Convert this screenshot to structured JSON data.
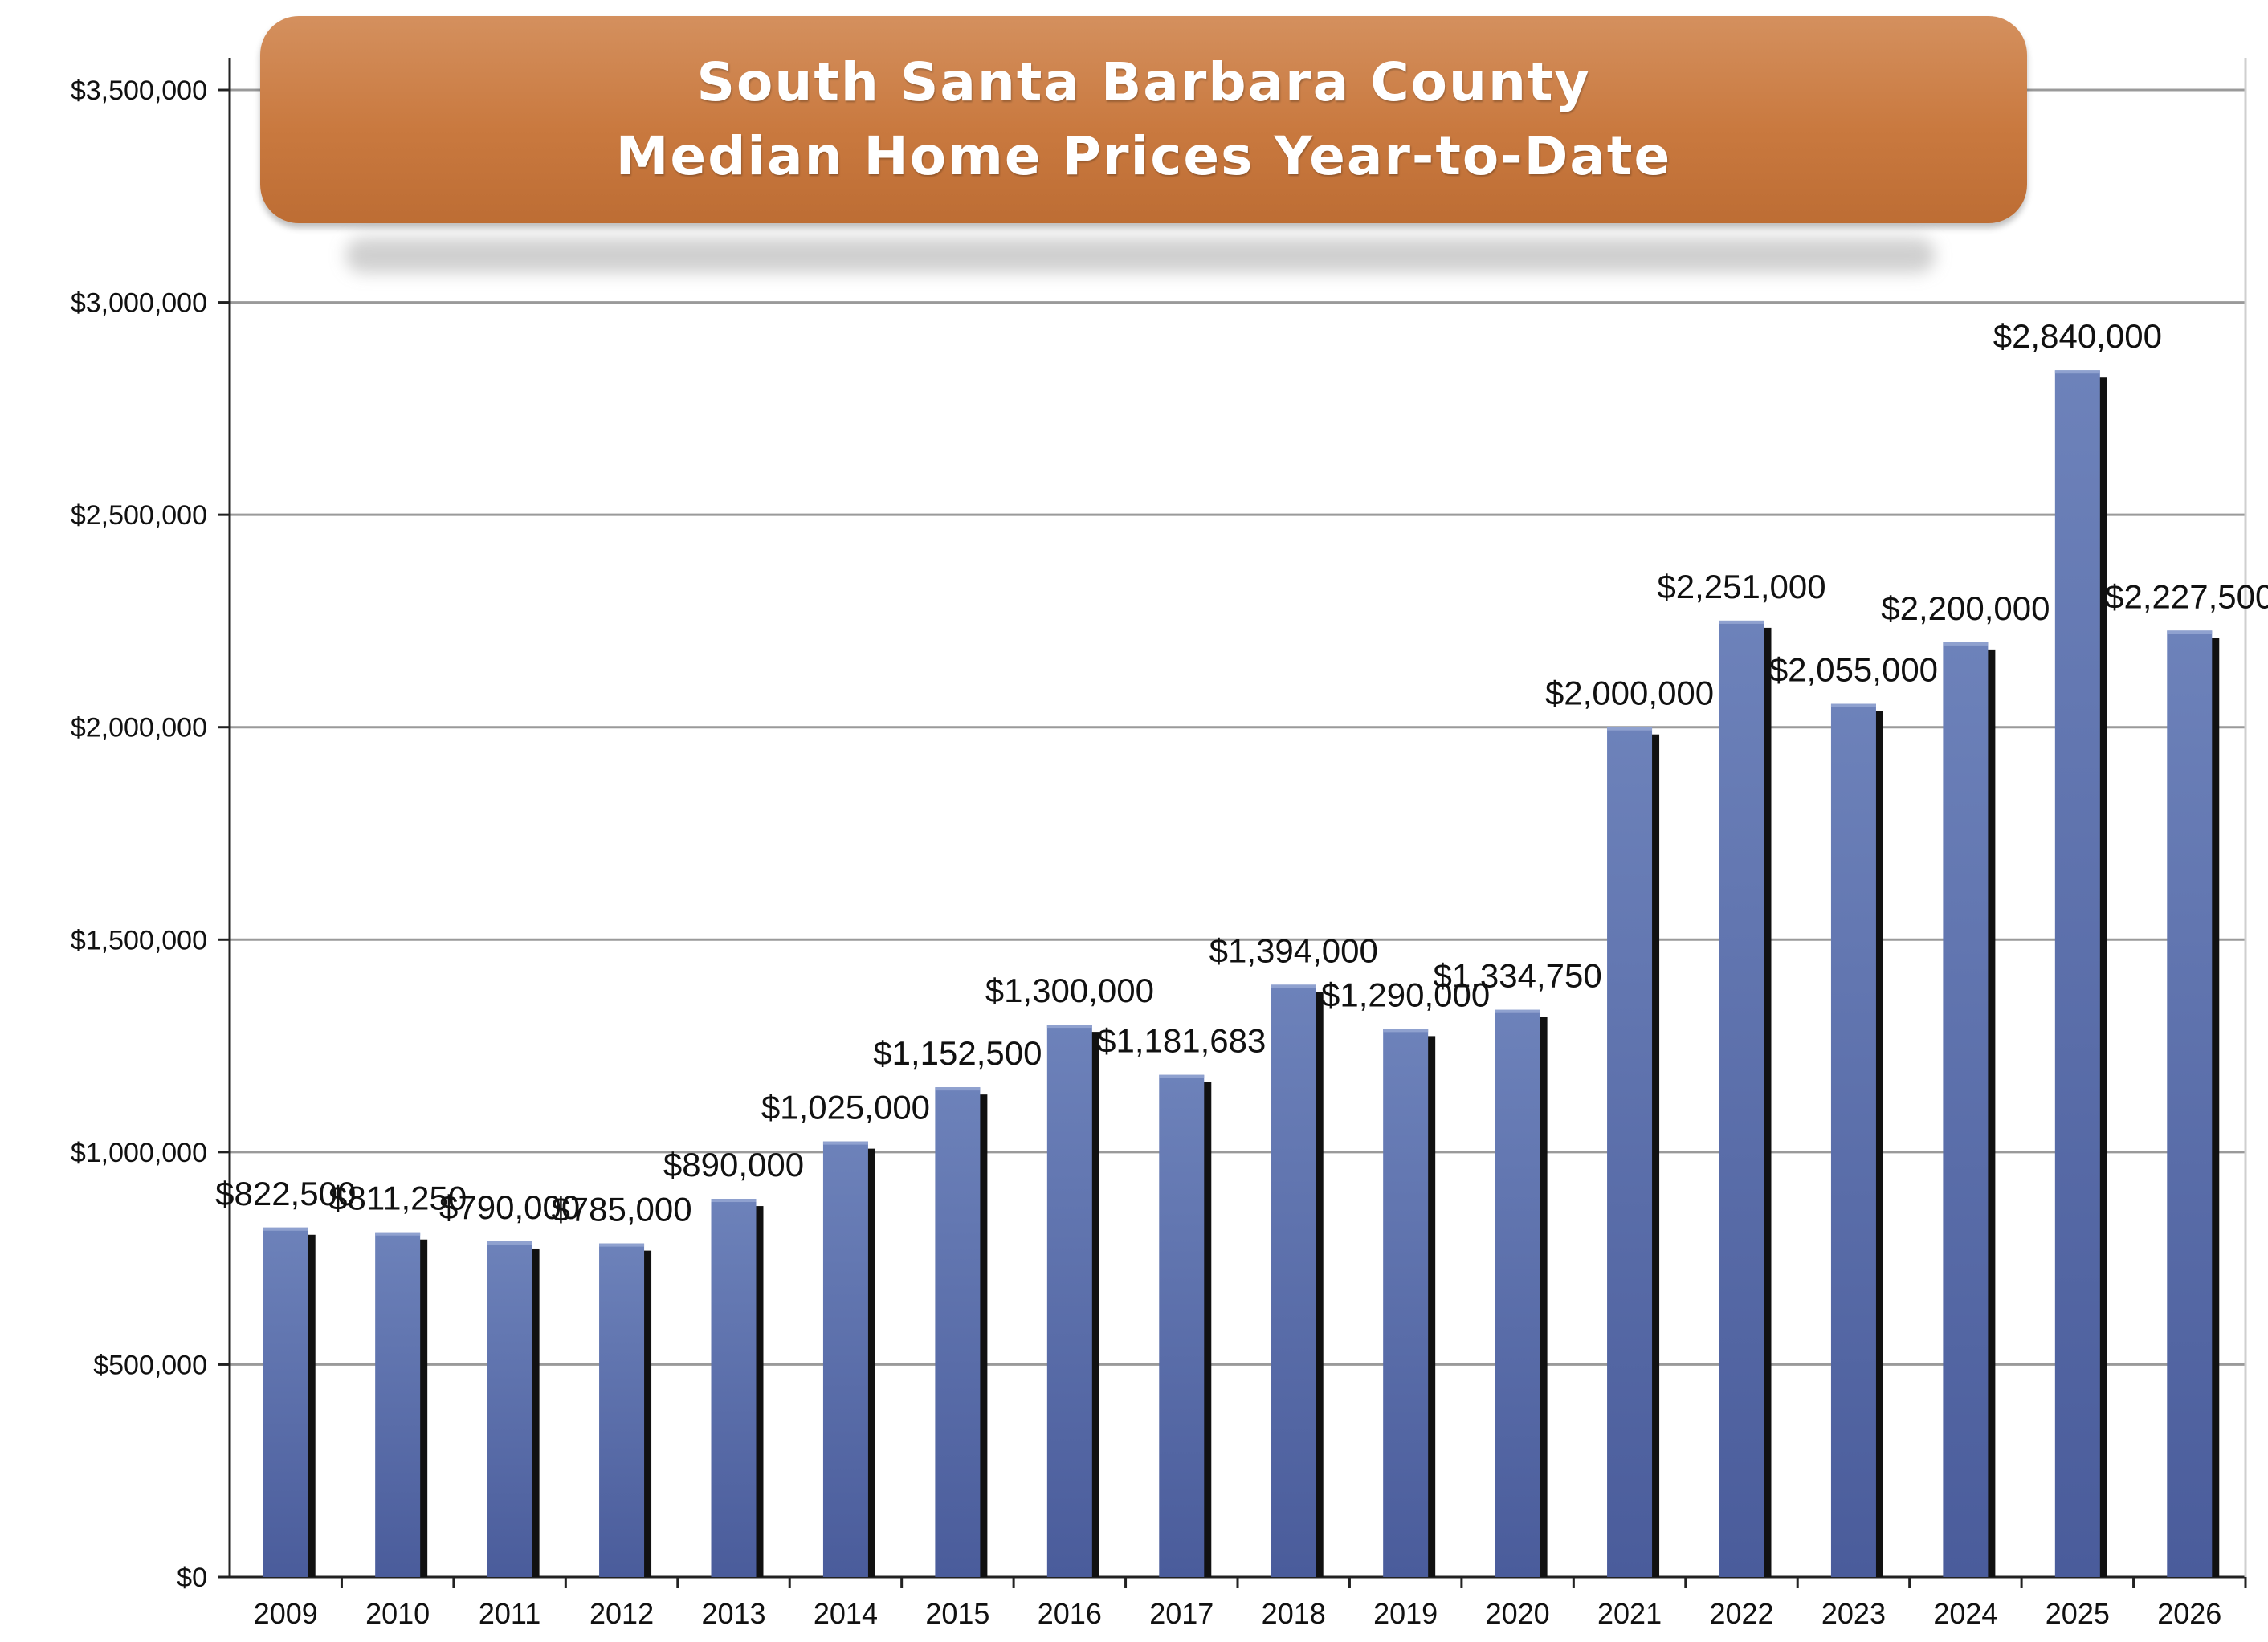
{
  "chart_data": {
    "type": "bar",
    "title_lines": [
      "South Santa Barbara County",
      "Median Home Prices Year-to-Date"
    ],
    "categories": [
      "2009",
      "2010",
      "2011",
      "2012",
      "2013",
      "2014",
      "2015",
      "2016",
      "2017",
      "2018",
      "2019",
      "2020",
      "2021",
      "2022",
      "2023",
      "2024",
      "2025",
      "2026"
    ],
    "values": [
      822500,
      811250,
      790000,
      785000,
      890000,
      1025000,
      1152500,
      1300000,
      1181683,
      1394000,
      1290000,
      1334750,
      2000000,
      2251000,
      2055000,
      2200000,
      2840000,
      2227500
    ],
    "value_labels": [
      "$822,500",
      "$811,250",
      "$790,000",
      "$785,000",
      "$890,000",
      "$1,025,000",
      "$1,152,500",
      "$1,300,000",
      "$1,181,683",
      "$1,394,000",
      "$1,290,000",
      "$1,334,750",
      "$2,000,000",
      "$2,251,000",
      "$2,055,000",
      "$2,200,000",
      "$2,840,000",
      "$2,227,500"
    ],
    "ylim": [
      0,
      3500000
    ],
    "yticks": [
      0,
      500000,
      1000000,
      1500000,
      2000000,
      2500000,
      3000000,
      3500000
    ],
    "ytick_labels": [
      "$0",
      "$500,000",
      "$1,000,000",
      "$1,500,000",
      "$2,000,000",
      "$2,500,000",
      "$3,000,000",
      "$3,500,000"
    ],
    "grid": true,
    "legend": "none",
    "colors": {
      "bar_top": "#6a7fb8",
      "bar_bottom": "#4a5d9c",
      "bar_shadow": "#111111",
      "banner": "#c9793f",
      "grid": "#999999"
    }
  }
}
